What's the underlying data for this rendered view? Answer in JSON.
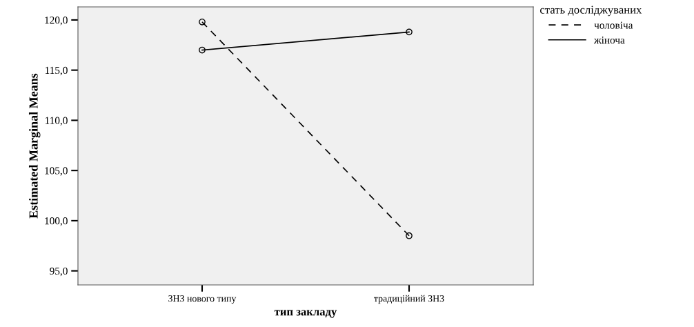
{
  "chart_data": {
    "type": "line",
    "xlabel": "тип закладу",
    "ylabel": "Estimated Marginal Means",
    "legend_title": "стать досліджуваних",
    "categories": [
      "ЗНЗ нового типу",
      "традиційний ЗНЗ"
    ],
    "series": [
      {
        "name": "чоловіча",
        "color": "#000000",
        "values": [
          119.8,
          98.5
        ],
        "line_style": "dashed"
      },
      {
        "name": "жіноча",
        "color": "#000000",
        "values": [
          117.0,
          118.8
        ],
        "line_style": "solid"
      }
    ],
    "ylim": [
      93.6,
      121.3
    ],
    "yticks": [
      {
        "value": 95,
        "label": "95,0"
      },
      {
        "value": 100,
        "label": "100,0"
      },
      {
        "value": 105,
        "label": "105,0"
      },
      {
        "value": 110,
        "label": "110,0"
      },
      {
        "value": 115,
        "label": "115,0"
      },
      {
        "value": 120,
        "label": "120,0"
      }
    ],
    "marker": "circle",
    "grid": false,
    "legend": "top right"
  }
}
